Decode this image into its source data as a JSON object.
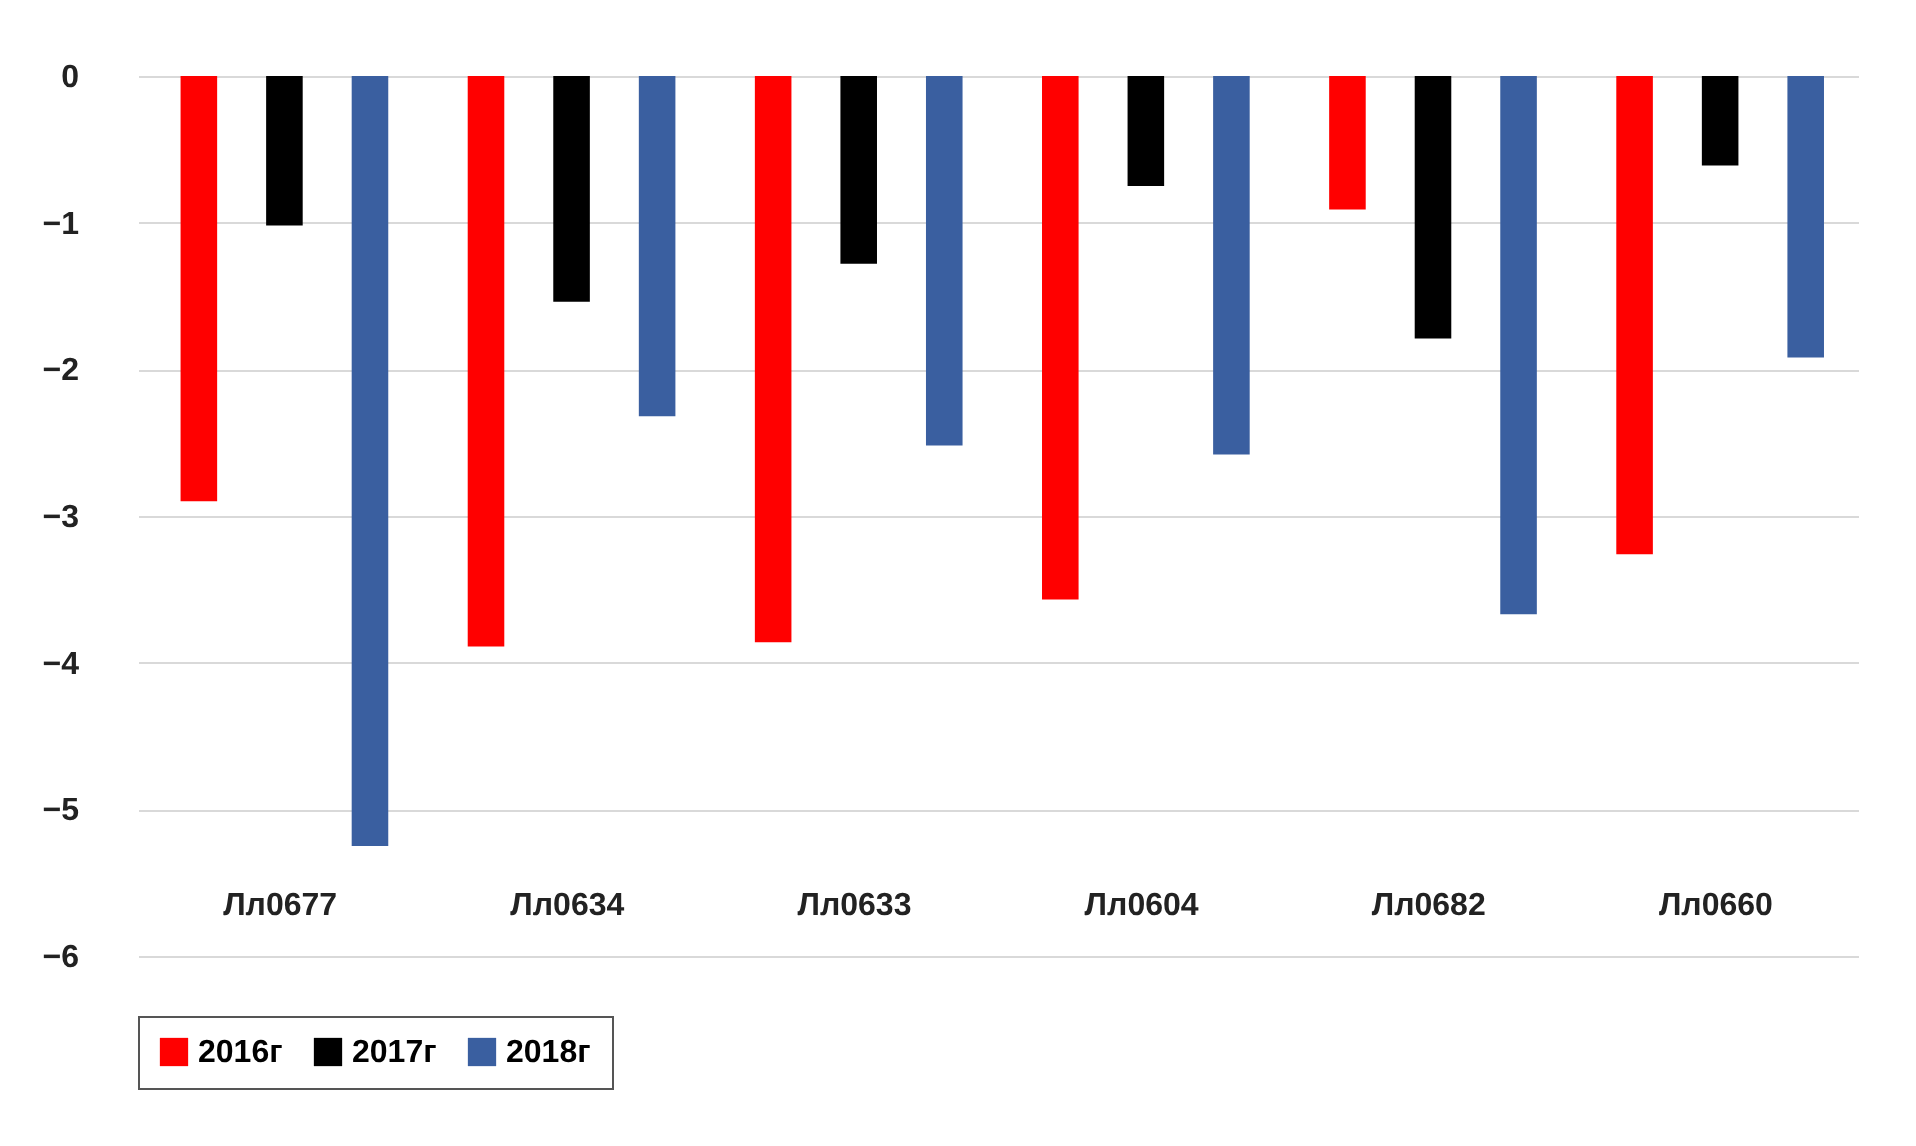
{
  "chart_data": {
    "type": "bar",
    "categories": [
      "Лл0677",
      "Лл0634",
      "Лл0633",
      "Лл0604",
      "Лл0682",
      "Лл0660"
    ],
    "series": [
      {
        "name": "2016г",
        "color": "#ff0000",
        "values": [
          -2.9,
          -3.89,
          -3.86,
          -3.57,
          -0.91,
          -3.26
        ]
      },
      {
        "name": "2017г",
        "color": "#000000",
        "values": [
          -1.02,
          -1.54,
          -1.28,
          -0.75,
          -1.79,
          -0.61
        ]
      },
      {
        "name": "2018г",
        "color": "#3a5fa0",
        "values": [
          -5.25,
          -2.32,
          -2.52,
          -2.58,
          -3.67,
          -1.92
        ]
      }
    ],
    "ylim": [
      -6,
      0
    ],
    "yticks": [
      -6,
      -5,
      -4,
      -3,
      -2,
      -1,
      0
    ],
    "grid": "y",
    "legend": "bottom"
  }
}
